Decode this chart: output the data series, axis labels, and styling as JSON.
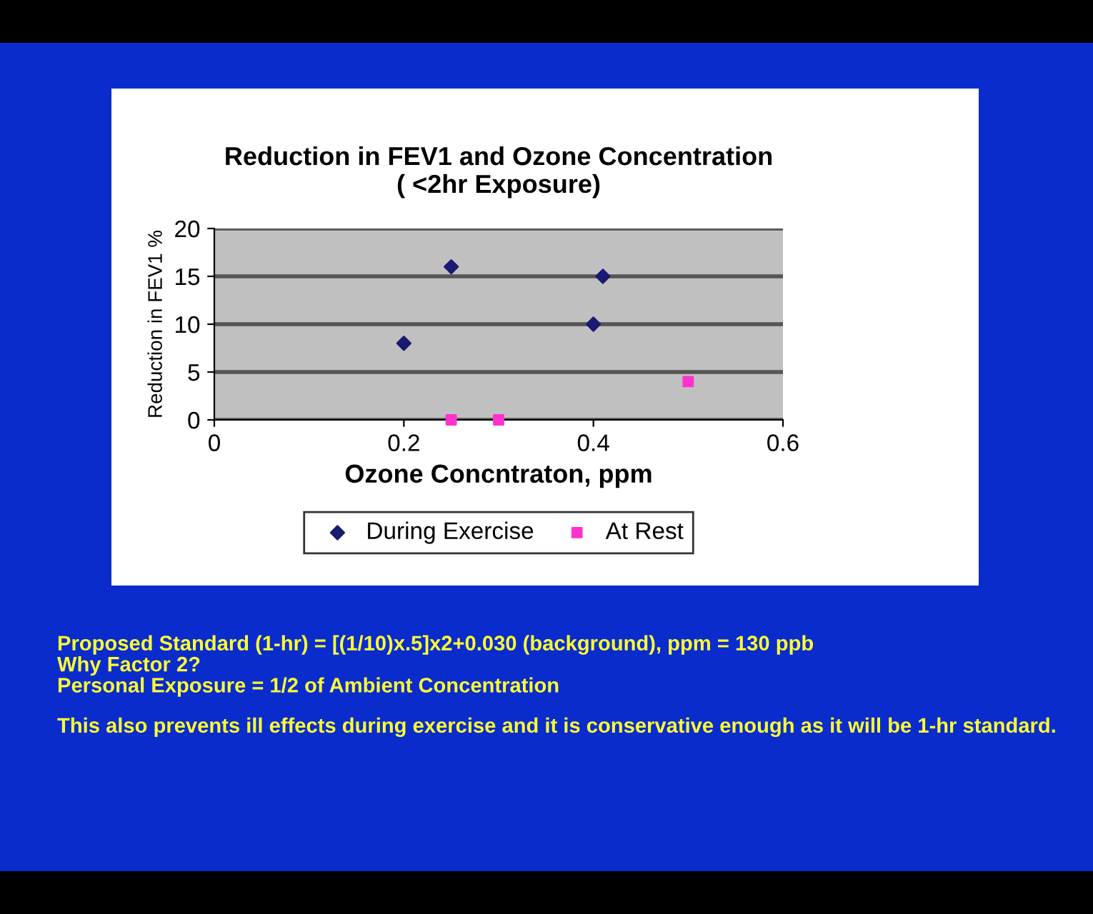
{
  "chart_data": {
    "type": "scatter",
    "title": "Reduction in FEV1 and Ozone Concentration\n( <2hr Exposure)",
    "xlabel": "Ozone Concntraton, ppm",
    "ylabel": "Reduction in FEV1 %",
    "xlim": [
      0,
      0.6
    ],
    "xticks": [
      0,
      0.2,
      0.4,
      0.6
    ],
    "ylim": [
      0,
      20
    ],
    "yticks": [
      0,
      5,
      10,
      15,
      20
    ],
    "grid": "y",
    "legend": "bottom",
    "series": [
      {
        "name": "During Exercise",
        "color": "#1a1a70",
        "marker": "diamond",
        "x": [
          0.2,
          0.25,
          0.4,
          0.41
        ],
        "values": [
          8,
          16,
          10,
          15
        ]
      },
      {
        "name": "At Rest",
        "color": "#ff33cc",
        "marker": "square",
        "x": [
          0.25,
          0.3,
          0.5
        ],
        "values": [
          0,
          0,
          4
        ]
      }
    ],
    "annotations": [
      "Proposed Standard (1-hr) = [(1/10)x.5]x2+0.030 (background), ppm = 130 ppb",
      "Why Factor 2?",
      "Personal Exposure = 1/2 of Ambient Concentration",
      "This also prevents ill effects during exercise and it is conservative enough as it will be 1-hr standard."
    ]
  }
}
